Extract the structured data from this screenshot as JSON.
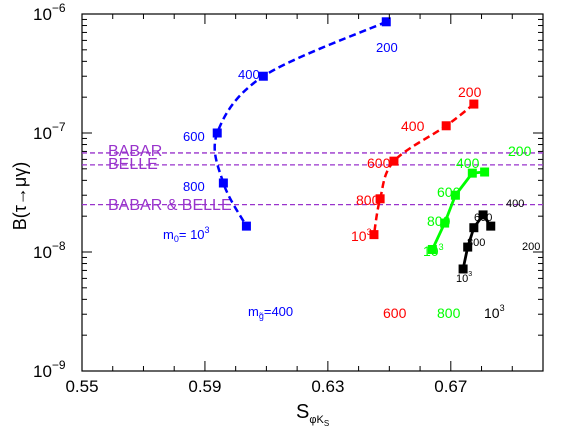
{
  "chart_data": {
    "type": "scatter",
    "title": "",
    "xlabel": {
      "main": "S",
      "sub": "φK",
      "subsub": "S"
    },
    "ylabel": "B(τ→μγ)",
    "xlim": [
      0.55,
      0.7
    ],
    "ylim_exponent": [
      -9,
      -6
    ],
    "y_scale": "log",
    "x_ticks": [
      "0.55",
      "0.59",
      "0.63",
      "0.67"
    ],
    "y_ticks": [
      {
        "base": "10",
        "exp": "−9"
      },
      {
        "base": "10",
        "exp": "−8"
      },
      {
        "base": "10",
        "exp": "−7"
      },
      {
        "base": "10",
        "exp": "−6"
      }
    ],
    "grid": false,
    "series": [
      {
        "color": "#0000ff",
        "line": "dashed",
        "points": [
          {
            "x": 0.649,
            "y": 8.6e-07
          },
          {
            "x": 0.609,
            "y": 3e-07
          },
          {
            "x": 0.594,
            "y": 1e-07
          },
          {
            "x": 0.596,
            "y": 3.8e-08
          },
          {
            "x": 0.6035,
            "y": 1.65e-08
          }
        ],
        "point_labels": [
          "200",
          "400",
          "600",
          "800",
          ""
        ]
      },
      {
        "color": "#ff0000",
        "line": "dashed",
        "points": [
          {
            "x": 0.6775,
            "y": 1.75e-07
          },
          {
            "x": 0.6685,
            "y": 1.15e-07
          },
          {
            "x": 0.6515,
            "y": 5.8e-08
          },
          {
            "x": 0.647,
            "y": 2.8e-08
          },
          {
            "x": 0.645,
            "y": 1.4e-08
          }
        ],
        "point_labels": [
          "200",
          "400",
          "600",
          "800",
          "10³"
        ]
      },
      {
        "color": "#00ff00",
        "line": "solid",
        "points": [
          {
            "x": 0.681,
            "y": 4.7e-08
          },
          {
            "x": 0.677,
            "y": 4.6e-08
          },
          {
            "x": 0.6715,
            "y": 3e-08
          },
          {
            "x": 0.668,
            "y": 1.75e-08
          },
          {
            "x": 0.664,
            "y": 1.05e-08
          }
        ],
        "point_labels": [
          "200",
          "400",
          "600",
          "800",
          "10³"
        ]
      },
      {
        "color": "#000000",
        "line": "solid",
        "points": [
          {
            "x": 0.683,
            "y": 1.65e-08
          },
          {
            "x": 0.6805,
            "y": 2.05e-08
          },
          {
            "x": 0.6775,
            "y": 1.6e-08
          },
          {
            "x": 0.6755,
            "y": 1.1e-08
          },
          {
            "x": 0.674,
            "y": 7.2e-09
          }
        ],
        "point_labels": [
          "200",
          "400",
          "600",
          "800",
          "10³"
        ]
      }
    ],
    "limits": [
      {
        "label": "BABAR",
        "y": 6.8e-08,
        "color": "#9933cc"
      },
      {
        "label": "BELLE",
        "y": 5.4e-08,
        "color": "#9933cc"
      },
      {
        "label": "BABAR & BELLE",
        "y": 2.5e-08,
        "color": "#9933cc"
      }
    ],
    "annotations": {
      "m0": {
        "text": "m",
        "sub": "0",
        "rest": "= 10",
        "sup": "3",
        "color": "#0000ff"
      },
      "mg": {
        "text": "m",
        "sub": "g̃",
        "rest": "=400",
        "color": "#0000ff"
      },
      "bottom_labels": [
        {
          "text": "600",
          "color": "#ff0000"
        },
        {
          "text": "800",
          "color": "#00ff00"
        },
        {
          "text": "10",
          "sup": "3",
          "color": "#000000"
        }
      ]
    }
  }
}
